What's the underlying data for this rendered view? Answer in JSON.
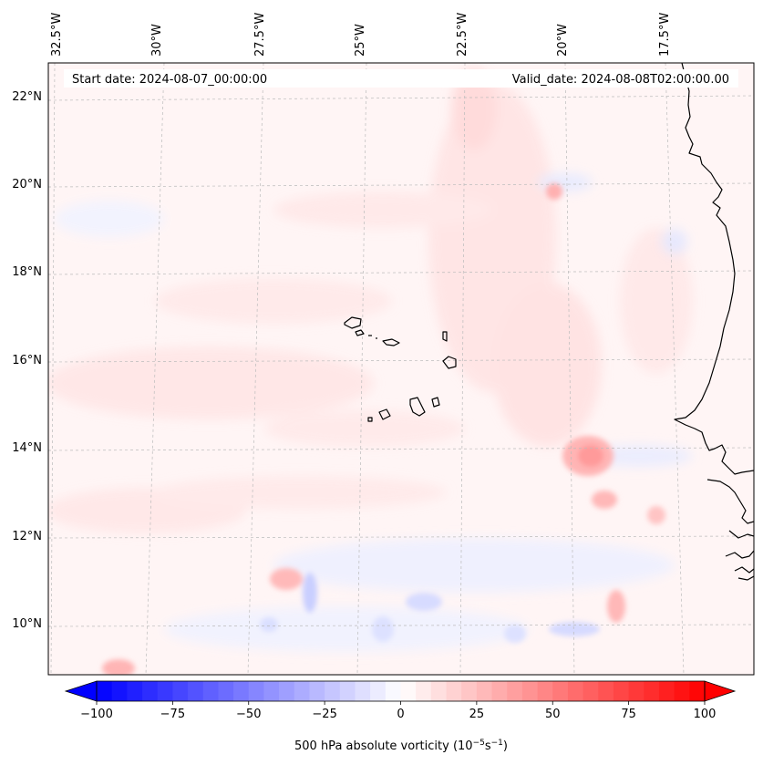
{
  "header": {
    "start_date": "Start date: 2024-08-07_00:00:00",
    "valid_date": "Valid_date: 2024-08-08T02:00:00.00"
  },
  "map": {
    "lon_labels": [
      "32.5°W",
      "30°W",
      "27.5°W",
      "25°W",
      "22.5°W",
      "20°W",
      "17.5°W"
    ],
    "lat_labels": [
      "22°N",
      "20°N",
      "18°N",
      "16°N",
      "14°N",
      "12°N",
      "10°N"
    ],
    "gridlines": true,
    "coastline_color": "#000000"
  },
  "colorbar": {
    "min": -100,
    "max": 100,
    "tick_labels": [
      "−100",
      "−75",
      "−50",
      "−25",
      "0",
      "25",
      "50",
      "75",
      "100"
    ],
    "label_text": "500 hPa absolute vorticity (10",
    "label_exp1": "−5",
    "label_mid": "s",
    "label_exp2": "−1",
    "label_end": ")",
    "colors": {
      "negative": "#0000ff",
      "zero": "#ffffff",
      "positive": "#ff0000"
    },
    "extend": "both"
  }
}
